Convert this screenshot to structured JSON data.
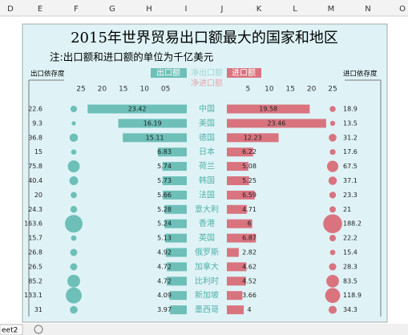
{
  "columns": [
    "D",
    "E",
    "F",
    "G",
    "H",
    "I",
    "J",
    "K",
    "L",
    "M",
    "N",
    "O"
  ],
  "sheet_tab": "eet2",
  "chart_data": {
    "type": "butterfly",
    "title": "2015年世界贸易出口额最大的国家和地区",
    "subtitle": "注:出口额和进口额的单位为千亿美元",
    "categories": [
      "中国",
      "美国",
      "德国",
      "日本",
      "荷兰",
      "韩国",
      "法国",
      "意大利",
      "香港",
      "英国",
      "俄罗斯",
      "加拿大",
      "比利时",
      "新加坡",
      "墨西哥"
    ],
    "series": [
      {
        "name": "出口额",
        "color": "#6dbfb8",
        "values": [
          23.42,
          16.19,
          15.11,
          6.83,
          5.74,
          5.73,
          5.66,
          5.28,
          5.24,
          5.13,
          4.92,
          4.72,
          4.72,
          4.09,
          3.97
        ]
      },
      {
        "name": "进口额",
        "color": "#d9747f",
        "values": [
          19.58,
          23.46,
          12.23,
          6.22,
          5.08,
          5.25,
          6.59,
          4.71,
          6,
          6.87,
          2.82,
          4.62,
          4.52,
          3.66,
          4
        ]
      }
    ],
    "net_labels": [
      "净出口额",
      "净进口额"
    ],
    "export_dependence": {
      "label": "出口依存度",
      "values": [
        22.6,
        9.3,
        36.8,
        15,
        75.8,
        40.4,
        20,
        24.3,
        163.6,
        15.7,
        26.8,
        26.5,
        85.2,
        133.1,
        31
      ]
    },
    "import_dependence": {
      "label": "进口依存度",
      "values": [
        18.9,
        13.5,
        31.2,
        17.6,
        67.5,
        37.1,
        23.3,
        21,
        188.2,
        22.2,
        15.4,
        28.3,
        83.5,
        118.9,
        34.3
      ]
    },
    "xlim": [
      0,
      25
    ],
    "xticks_left": [
      25,
      20,
      15,
      10,
      {
        "value": 5,
        "label": "05"
      }
    ],
    "xticks_right": [
      5,
      10,
      15,
      20,
      25
    ]
  }
}
